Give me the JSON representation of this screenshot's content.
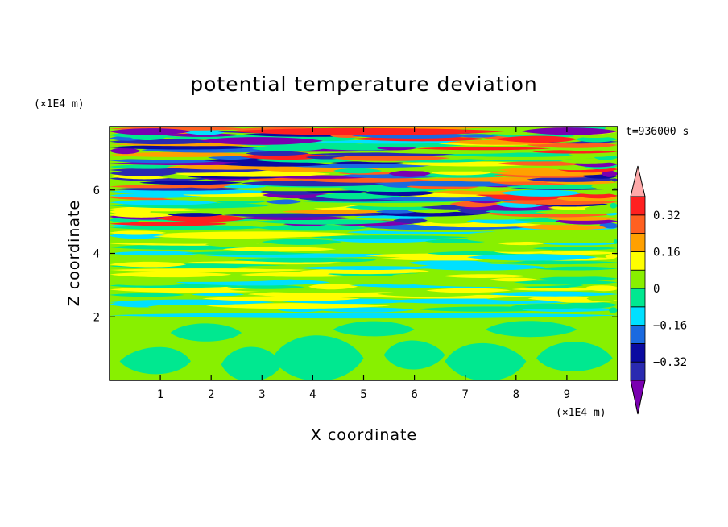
{
  "chart_data": {
    "type": "heatmap",
    "title": "potential temperature deviation",
    "xlabel": "X coordinate",
    "ylabel": "Z coordinate",
    "x_unit": "(×1E4 m)",
    "y_unit": "(×1E4 m)",
    "time_label": "t=936000 s",
    "xlim": [
      0,
      10
    ],
    "ylim": [
      0,
      8
    ],
    "x_ticks": [
      1,
      2,
      3,
      4,
      5,
      6,
      7,
      8,
      9
    ],
    "y_ticks": [
      2,
      4,
      6
    ],
    "colorbar": {
      "levels": [
        -0.4,
        -0.32,
        -0.24,
        -0.16,
        -0.08,
        0,
        0.08,
        0.16,
        0.24,
        0.32,
        0.4
      ],
      "labels": [
        "0.32",
        "0.16",
        "0",
        "−0.16",
        "−0.32"
      ],
      "label_values": [
        0.32,
        0.16,
        0,
        -0.16,
        -0.32
      ],
      "colors_low_to_high": [
        "#7a00b0",
        "#2a2ab0",
        "#0a0aa0",
        "#1a6ae0",
        "#00e0ff",
        "#00e890",
        "#88f000",
        "#ffff00",
        "#ffa000",
        "#ff6020",
        "#ff2020",
        "#ffaaaa"
      ],
      "extend": "both"
    },
    "field_description": {
      "lower_layer": {
        "z_range": [
          0,
          2
        ],
        "dominant_values": [
          0,
          0.08
        ]
      },
      "middle_layer": {
        "z_range": [
          2,
          4.8
        ],
        "dominant_values": [
          -0.08,
          0,
          0.08,
          0.16
        ]
      },
      "upper_layer": {
        "z_range": [
          4.8,
          8
        ],
        "dominant_values": [
          -0.4,
          -0.32,
          -0.16,
          0.16,
          0.32,
          0.4
        ]
      }
    }
  }
}
